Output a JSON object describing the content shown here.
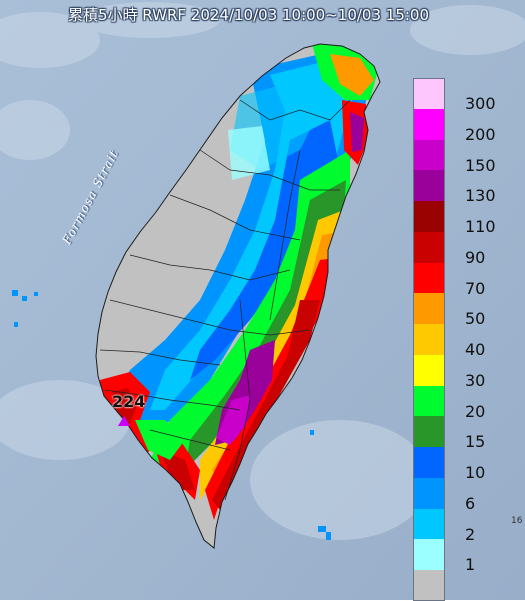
{
  "title": "累積5小時 RWRF 2024/10/03 10:00~10/03 15:00",
  "strait_label": "Formosa Strait",
  "max_value": "224",
  "edge_label": "16",
  "legend": {
    "levels": [
      {
        "label": "300",
        "color": "#fdc6fd"
      },
      {
        "label": "200",
        "color": "#fe00fe"
      },
      {
        "label": "150",
        "color": "#c900c9"
      },
      {
        "label": "130",
        "color": "#9a009a"
      },
      {
        "label": "110",
        "color": "#9a0101"
      },
      {
        "label": "90",
        "color": "#c90101"
      },
      {
        "label": "70",
        "color": "#fe0000"
      },
      {
        "label": "50",
        "color": "#fe9a00"
      },
      {
        "label": "40",
        "color": "#fec900"
      },
      {
        "label": "30",
        "color": "#ffff00"
      },
      {
        "label": "20",
        "color": "#00fb2e"
      },
      {
        "label": "15",
        "color": "#289628"
      },
      {
        "label": "10",
        "color": "#0066ff"
      },
      {
        "label": "6",
        "color": "#0095fe"
      },
      {
        "label": "2",
        "color": "#00c7fe"
      },
      {
        "label": "1",
        "color": "#9bffff"
      },
      {
        "label": "",
        "color": "#c1c1c1"
      }
    ]
  }
}
